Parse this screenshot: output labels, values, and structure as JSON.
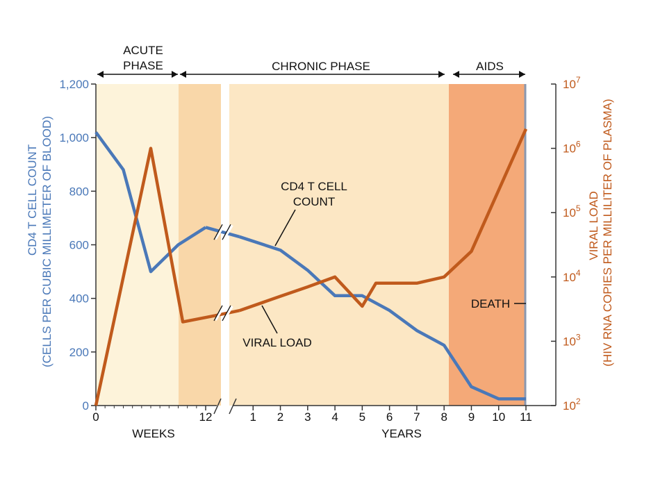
{
  "chart_data": {
    "type": "line",
    "phases": [
      {
        "label_lines": [
          "ACUTE",
          "PHASE"
        ]
      },
      {
        "label_lines": [
          "CHRONIC PHASE"
        ]
      },
      {
        "label_lines": [
          "AIDS"
        ]
      }
    ],
    "left_axis": {
      "title_lines": [
        "CD4 T CELL COUNT",
        "(CELLS PER CUBIC MILLIMETER OF BLOOD)"
      ],
      "ylim": [
        0,
        1200
      ],
      "ticks": [
        0,
        200,
        400,
        600,
        800,
        1000,
        1200
      ],
      "tick_labels": [
        "0",
        "200",
        "400",
        "600",
        "800",
        "1,000",
        "1,200"
      ]
    },
    "right_axis": {
      "title_lines": [
        "VIRAL LOAD",
        "(HIV RNA COPIES PER MILLILITER OF PLASMA)"
      ],
      "scale": "log",
      "ylim": [
        100,
        10000000
      ],
      "ticks": [
        100,
        1000,
        10000,
        100000,
        1000000,
        10000000
      ],
      "tick_base": "10",
      "tick_exponents": [
        "2",
        "3",
        "4",
        "5",
        "6",
        "7"
      ]
    },
    "x_axis": {
      "weeks_label": "WEEKS",
      "years_label": "YEARS",
      "week_ticks": [
        0,
        12
      ],
      "year_ticks": [
        1,
        2,
        3,
        4,
        5,
        6,
        7,
        8,
        9,
        10,
        11
      ],
      "axis_break": true
    },
    "series": [
      {
        "name": "CD4 T CELL COUNT",
        "color": "#4a78b8",
        "axis": "left",
        "points": [
          {
            "unit": "week",
            "x": 0,
            "y": 1020
          },
          {
            "unit": "week",
            "x": 3,
            "y": 880
          },
          {
            "unit": "week",
            "x": 6,
            "y": 500
          },
          {
            "unit": "week",
            "x": 9,
            "y": 600
          },
          {
            "unit": "week",
            "x": 12,
            "y": 665
          },
          {
            "unit": "break"
          },
          {
            "unit": "year",
            "x": 0.5,
            "y": 630
          },
          {
            "unit": "year",
            "x": 2,
            "y": 580
          },
          {
            "unit": "year",
            "x": 3,
            "y": 505
          },
          {
            "unit": "year",
            "x": 4,
            "y": 410
          },
          {
            "unit": "year",
            "x": 5,
            "y": 410
          },
          {
            "unit": "year",
            "x": 6,
            "y": 355
          },
          {
            "unit": "year",
            "x": 7,
            "y": 280
          },
          {
            "unit": "year",
            "x": 8,
            "y": 225
          },
          {
            "unit": "year",
            "x": 9,
            "y": 70
          },
          {
            "unit": "year",
            "x": 10,
            "y": 25
          },
          {
            "unit": "year",
            "x": 11,
            "y": 25
          }
        ]
      },
      {
        "name": "VIRAL LOAD",
        "color": "#c05a1c",
        "axis": "right",
        "points": [
          {
            "unit": "week",
            "x": 0,
            "y": 100
          },
          {
            "unit": "week",
            "x": 3,
            "y": 10000
          },
          {
            "unit": "week",
            "x": 6,
            "y": 1000000
          },
          {
            "unit": "week",
            "x": 9.5,
            "y": 2000
          },
          {
            "unit": "week",
            "x": 13,
            "y": 2500
          },
          {
            "unit": "break"
          },
          {
            "unit": "year",
            "x": 0.5,
            "y": 3000
          },
          {
            "unit": "year",
            "x": 2,
            "y": 5000
          },
          {
            "unit": "year",
            "x": 3,
            "y": 7000
          },
          {
            "unit": "year",
            "x": 4,
            "y": 10000
          },
          {
            "unit": "year",
            "x": 5,
            "y": 3500
          },
          {
            "unit": "year",
            "x": 5.5,
            "y": 8000
          },
          {
            "unit": "year",
            "x": 7,
            "y": 8000
          },
          {
            "unit": "year",
            "x": 8,
            "y": 10000
          },
          {
            "unit": "year",
            "x": 9,
            "y": 25000
          },
          {
            "unit": "year",
            "x": 11,
            "y": 2000000
          }
        ]
      }
    ],
    "annotations": {
      "cd4_lines": [
        "CD4 T CELL",
        "COUNT"
      ],
      "viral_load": "VIRAL LOAD",
      "death": "DEATH"
    },
    "colors": {
      "acute_bg": "#fdf3da",
      "chronic_bg": "#fce7c4",
      "early_chronic_bg": "#f9d7a9",
      "aids_bg": "#f4a978",
      "cd4": "#4a78b8",
      "viral": "#c05a1c",
      "axis": "#333333"
    }
  }
}
